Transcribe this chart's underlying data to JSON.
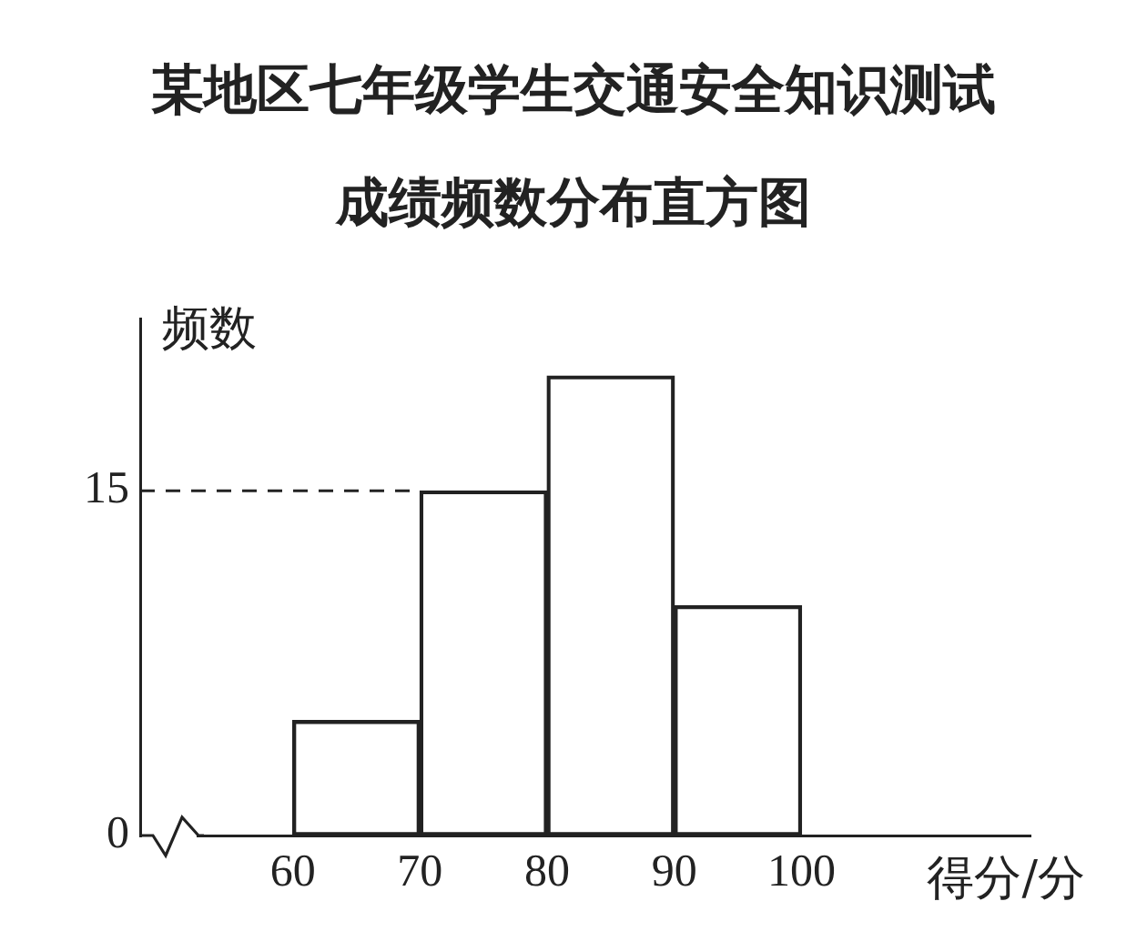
{
  "chart_data": {
    "type": "histogram",
    "title": "某地区七年级学生交通安全知识测试成绩频数分布直方图",
    "xlabel": "得分/分",
    "ylabel": "频数",
    "bins": [
      60,
      70,
      80,
      90,
      100
    ],
    "values": [
      5,
      15,
      20,
      10
    ],
    "color": "#222222",
    "xlim": [
      48,
      118
    ],
    "xticks": [
      60,
      70,
      80,
      90,
      100
    ],
    "ylim": [
      0,
      22.5
    ],
    "yticks": [
      0,
      15
    ],
    "ref_lines": [
      {
        "axis": "y",
        "value": 15,
        "line_style": "dashed"
      }
    ],
    "grid": false,
    "legend": false
  }
}
